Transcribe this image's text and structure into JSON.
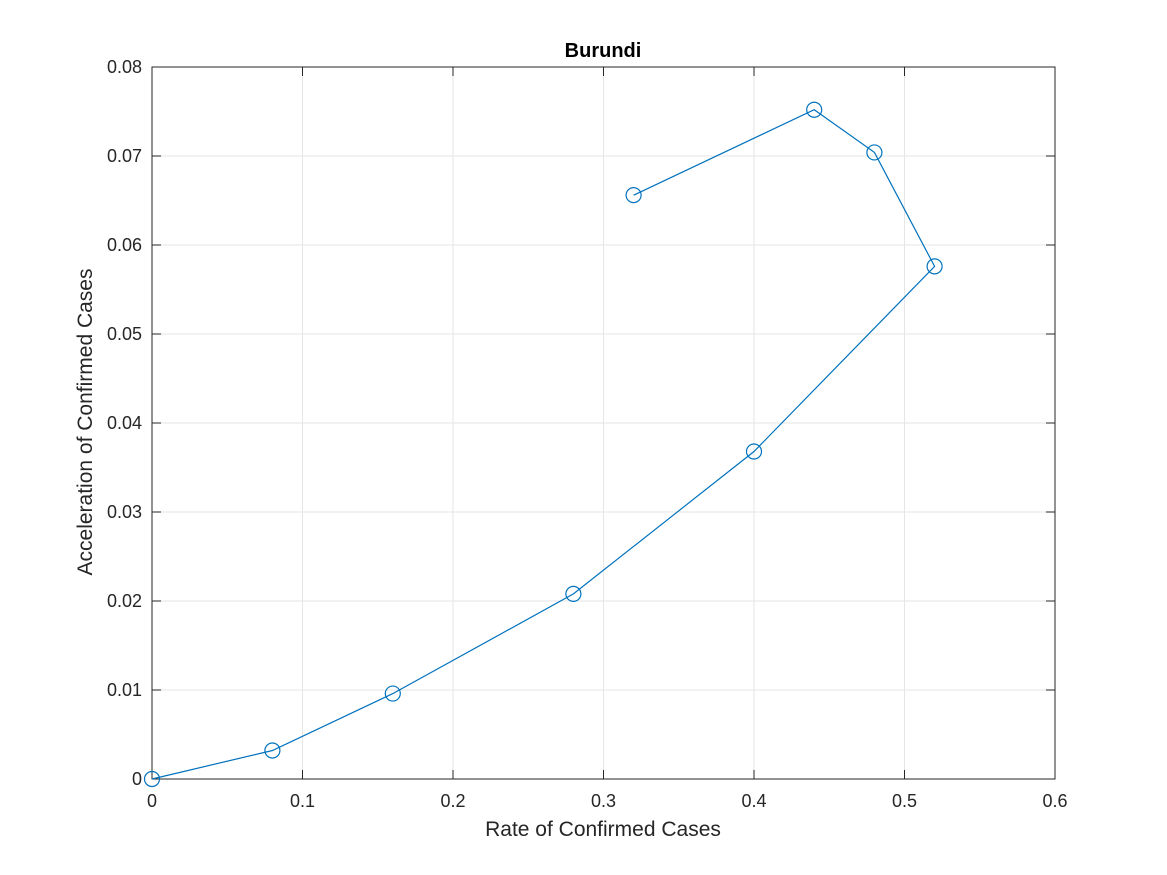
{
  "chart_data": {
    "type": "line",
    "title": "Burundi",
    "xlabel": "Rate of Confirmed Cases",
    "ylabel": "Acceleration of Confirmed Cases",
    "xlim": [
      0,
      0.6
    ],
    "ylim": [
      0,
      0.08
    ],
    "xticks": [
      "0",
      "0.1",
      "0.2",
      "0.3",
      "0.4",
      "0.5",
      "0.6"
    ],
    "yticks": [
      "0",
      "0.01",
      "0.02",
      "0.03",
      "0.04",
      "0.05",
      "0.06",
      "0.07",
      "0.08"
    ],
    "grid": true,
    "marker": "circle",
    "series": [
      {
        "x": [
          0,
          0.08,
          0.16,
          0.28,
          0.4,
          0.52,
          0.48,
          0.44,
          0.32
        ],
        "y": [
          0,
          0.0032,
          0.0096,
          0.0208,
          0.0368,
          0.0576,
          0.0704,
          0.0752,
          0.0656
        ]
      }
    ],
    "colors": {
      "series": "#0072BD",
      "grid": "#e6e6e6",
      "axis": "#262626"
    }
  }
}
